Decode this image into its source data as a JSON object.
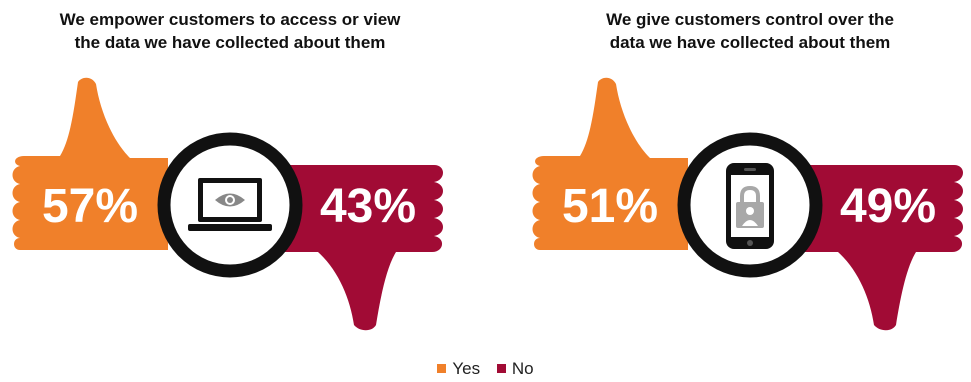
{
  "chart_data": [
    {
      "type": "pie",
      "title_lines": [
        "We empower customers to access or view",
        "the data we have collected about them"
      ],
      "categories": [
        "Yes",
        "No"
      ],
      "values": [
        57,
        43
      ],
      "labels": [
        "57%",
        "43%"
      ],
      "icon": "laptop-eye-icon"
    },
    {
      "type": "pie",
      "title_lines": [
        "We give customers control over the",
        "data we have collected about them"
      ],
      "categories": [
        "Yes",
        "No"
      ],
      "values": [
        51,
        49
      ],
      "labels": [
        "51%",
        "49%"
      ],
      "icon": "phone-lock-icon"
    }
  ],
  "legend": [
    {
      "label": "Yes",
      "color": "#f0802a"
    },
    {
      "label": "No",
      "color": "#a10b35"
    }
  ],
  "colors": {
    "yes": "#f0802a",
    "no": "#a10b35",
    "ring": "#111111"
  }
}
